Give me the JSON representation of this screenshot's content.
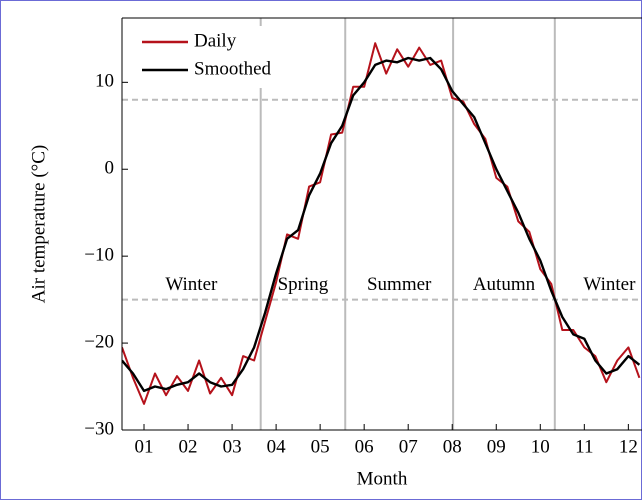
{
  "chart_data": {
    "type": "line",
    "x_label": "Month",
    "y_label": "Air temperature (°C)",
    "x": [
      0.5,
      0.75,
      1,
      1.25,
      1.5,
      1.75,
      2,
      2.25,
      2.5,
      2.75,
      3,
      3.25,
      3.5,
      3.75,
      4,
      4.25,
      4.5,
      4.75,
      5,
      5.25,
      5.5,
      5.75,
      6,
      6.25,
      6.5,
      6.75,
      7,
      7.25,
      7.5,
      7.75,
      8,
      8.25,
      8.5,
      8.75,
      9,
      9.25,
      9.5,
      9.75,
      10,
      10.25,
      10.5,
      10.75,
      11,
      11.25,
      11.5,
      11.75,
      12,
      12.25
    ],
    "series": [
      {
        "name": "Daily",
        "color": "#b5121b",
        "values": [
          -20.5,
          -24,
          -27,
          -23.5,
          -26,
          -23.8,
          -25.5,
          -22,
          -25.8,
          -24,
          -26,
          -21.5,
          -22,
          -17.5,
          -13,
          -7.5,
          -8,
          -2,
          -1.5,
          4,
          4.2,
          9.5,
          9.5,
          14.5,
          11,
          13.8,
          11.8,
          14,
          12,
          12.5,
          8.2,
          7.8,
          5.2,
          3.5,
          -1,
          -2,
          -6,
          -7.2,
          -11.5,
          -13.2,
          -18.5,
          -18.5,
          -20.5,
          -21.5,
          -24.5,
          -22,
          -20.5,
          -24
        ]
      },
      {
        "name": "Smoothed",
        "color": "#000000",
        "values": [
          -22,
          -23.5,
          -25.5,
          -25,
          -25.3,
          -24.8,
          -24.5,
          -23.5,
          -24.5,
          -25,
          -24.8,
          -23,
          -20.5,
          -16.5,
          -12,
          -8,
          -7,
          -3,
          -0.5,
          3,
          5,
          8.5,
          10,
          12,
          12.5,
          12.3,
          12.8,
          12.5,
          12.8,
          11.5,
          9,
          7.5,
          6,
          3,
          0,
          -2.5,
          -5,
          -8,
          -10.5,
          -14,
          -17,
          -19,
          -19.5,
          -22,
          -23.5,
          -23,
          -21.5,
          -22.5
        ]
      }
    ],
    "xlim": [
      0.5,
      12.31
    ],
    "xticks": [
      {
        "value": 1,
        "label": "01"
      },
      {
        "value": 2,
        "label": "02"
      },
      {
        "value": 3,
        "label": "03"
      },
      {
        "value": 4,
        "label": "04"
      },
      {
        "value": 5,
        "label": "05"
      },
      {
        "value": 6,
        "label": "06"
      },
      {
        "value": 7,
        "label": "07"
      },
      {
        "value": 8,
        "label": "08"
      },
      {
        "value": 9,
        "label": "09"
      },
      {
        "value": 10,
        "label": "10"
      },
      {
        "value": 11,
        "label": "11"
      },
      {
        "value": 12,
        "label": "12"
      }
    ],
    "ylim": [
      -30,
      17.4
    ],
    "yticks": [
      {
        "value": -30,
        "label": "−30"
      },
      {
        "value": -20,
        "label": "−20"
      },
      {
        "value": -10,
        "label": "−10"
      },
      0,
      10
    ],
    "season_boundaries": [
      3.65,
      5.57,
      8.02,
      10.33
    ],
    "thresholds": [
      8,
      -15
    ],
    "seasons": [
      "Winter",
      "Spring",
      "Summer",
      "Autumn",
      "Winter"
    ],
    "legend": "upper left"
  }
}
